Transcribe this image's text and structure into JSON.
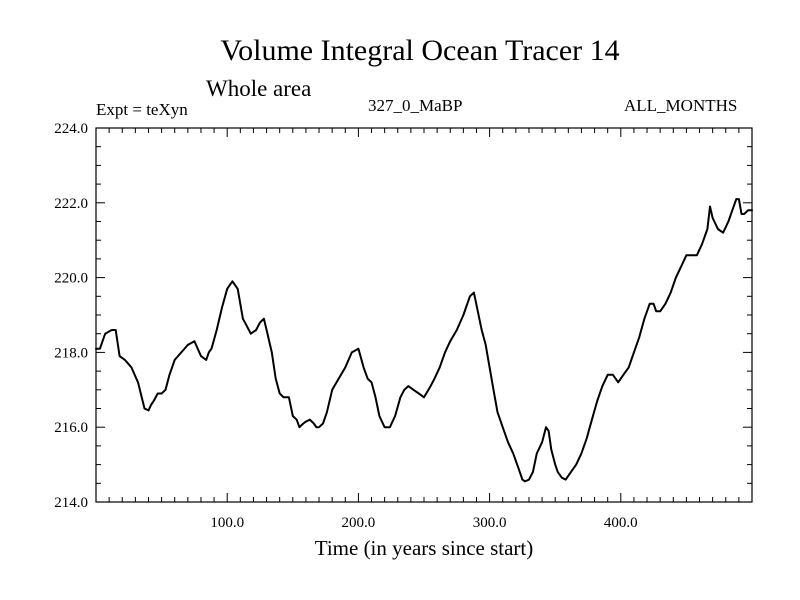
{
  "title": "Volume Integral Ocean Tracer 14",
  "subtitle": "Whole area",
  "header": {
    "left": "Expt = teXyn",
    "center": "327_0_MaBP",
    "right": "ALL_MONTHS"
  },
  "chart_data": {
    "type": "line",
    "title": "Volume Integral Ocean Tracer 14",
    "xlabel": "Time (in years since start)",
    "ylabel": "",
    "xlim": [
      0,
      500
    ],
    "ylim": [
      214.0,
      224.0
    ],
    "xticks": [
      100,
      200,
      300,
      400
    ],
    "xtick_labels": [
      "100.0",
      "200.0",
      "300.0",
      "400.0"
    ],
    "yticks": [
      214,
      216,
      218,
      220,
      222,
      224
    ],
    "ytick_labels": [
      "214.0",
      "216.0",
      "218.0",
      "220.0",
      "222.0",
      "224.0"
    ],
    "grid": false,
    "series": [
      {
        "color": "#000000",
        "x": [
          0,
          3,
          7,
          12,
          15,
          18,
          22,
          27,
          32,
          37,
          40,
          42,
          44,
          47,
          50,
          53,
          56,
          60,
          65,
          70,
          75,
          80,
          84,
          86,
          88,
          92,
          96,
          100,
          104,
          108,
          110,
          112,
          115,
          118,
          122,
          125,
          128,
          130,
          134,
          137,
          140,
          143,
          147,
          150,
          153,
          155,
          158,
          160,
          163,
          166,
          168,
          170,
          173,
          176,
          180,
          185,
          190,
          195,
          200,
          204,
          207,
          210,
          213,
          216,
          220,
          224,
          228,
          232,
          235,
          238,
          242,
          246,
          250,
          255,
          258,
          262,
          266,
          270,
          275,
          280,
          285,
          288,
          291,
          294,
          297,
          300,
          303,
          306,
          310,
          314,
          318,
          322,
          325,
          327,
          330,
          333,
          336,
          340,
          343,
          345,
          347,
          350,
          352,
          355,
          358,
          362,
          366,
          370,
          374,
          378,
          382,
          386,
          390,
          394,
          398,
          402,
          406,
          410,
          414,
          418,
          422,
          425,
          427,
          430,
          434,
          438,
          442,
          446,
          450,
          454,
          458,
          462,
          466,
          468,
          470,
          474,
          478,
          482,
          485,
          488,
          490,
          492,
          494,
          497,
          500
        ],
        "y": [
          218.1,
          218.1,
          218.5,
          218.6,
          218.6,
          217.9,
          217.8,
          217.6,
          217.2,
          216.5,
          216.45,
          216.6,
          216.7,
          216.9,
          216.9,
          217.0,
          217.4,
          217.8,
          218.0,
          218.2,
          218.3,
          217.9,
          217.8,
          218.0,
          218.1,
          218.6,
          219.2,
          219.7,
          219.9,
          219.7,
          219.3,
          218.9,
          218.7,
          218.5,
          218.6,
          218.8,
          218.9,
          218.6,
          218.0,
          217.3,
          216.9,
          216.8,
          216.8,
          216.3,
          216.2,
          216.0,
          216.1,
          216.15,
          216.2,
          216.1,
          216.0,
          216.0,
          216.1,
          216.4,
          217.0,
          217.3,
          217.6,
          218.0,
          218.1,
          217.6,
          217.3,
          217.2,
          216.8,
          216.3,
          216.0,
          216.0,
          216.3,
          216.8,
          217.0,
          217.1,
          217.0,
          216.9,
          216.8,
          217.1,
          217.3,
          217.6,
          218.0,
          218.3,
          218.6,
          219.0,
          219.5,
          219.6,
          219.1,
          218.6,
          218.2,
          217.6,
          217.0,
          216.4,
          216.0,
          215.6,
          215.3,
          214.9,
          214.6,
          214.55,
          214.6,
          214.8,
          215.3,
          215.6,
          216.0,
          215.9,
          215.4,
          215.0,
          214.8,
          214.65,
          214.6,
          214.8,
          215.0,
          215.3,
          215.7,
          216.2,
          216.7,
          217.1,
          217.4,
          217.4,
          217.2,
          217.4,
          217.6,
          218.0,
          218.4,
          218.9,
          219.3,
          219.3,
          219.1,
          219.1,
          219.3,
          219.6,
          220.0,
          220.3,
          220.6,
          220.6,
          220.6,
          220.9,
          221.3,
          221.9,
          221.6,
          221.3,
          221.2,
          221.5,
          221.8,
          222.1,
          222.1,
          221.7,
          221.7,
          221.8,
          221.8
        ]
      }
    ]
  }
}
